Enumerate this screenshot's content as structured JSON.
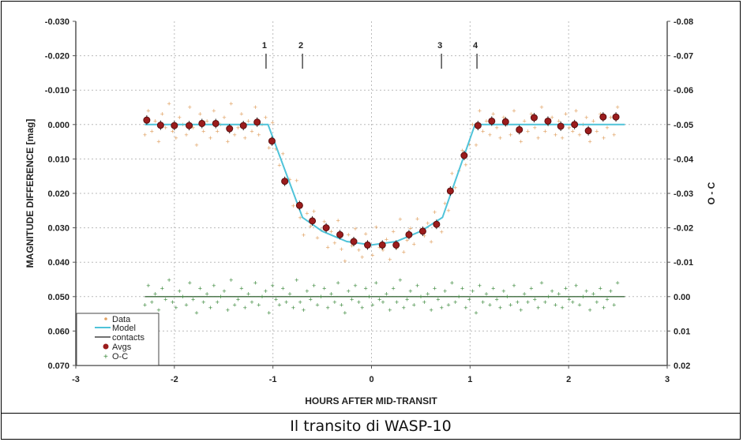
{
  "caption": "Il transito di WASP-10",
  "chart_data": {
    "type": "scatter",
    "xlabel": "HOURS AFTER MID-TRANSIT",
    "ylabel": "MAGNITUDE DIFFERENCE [mag]",
    "y2label": "O - C",
    "xlim": [
      -3,
      3
    ],
    "ylim": [
      -0.03,
      0.07
    ],
    "y2lim": [
      -0.08,
      0.02
    ],
    "y_inverted": true,
    "grid": true,
    "xticks": [
      "-3",
      "-2",
      "-1",
      "0",
      "1",
      "2",
      "3"
    ],
    "yticks": [
      "-0.030",
      "-0.020",
      "-0.010",
      "0.000",
      "0.010",
      "0.020",
      "0.030",
      "0.040",
      "0.050",
      "0.060",
      "0.070"
    ],
    "y2ticks": [
      "-0.08",
      "-0.07",
      "-0.06",
      "-0.05",
      "-0.04",
      "-0.03",
      "-0.02",
      "-0.01",
      "0.00",
      "0.01",
      "0.02"
    ],
    "legend": {
      "placement": "bottom-left",
      "entries": [
        "Data",
        "Model",
        "contacts",
        "Avgs",
        "O-C"
      ]
    },
    "colors": {
      "data": "#e0a060",
      "model": "#4fc3d9",
      "contacts": "#444444",
      "avgs": "#9b1c1c",
      "oc": "#3d8a3d"
    },
    "contacts": [
      {
        "label": "1",
        "x": -1.07
      },
      {
        "label": "2",
        "x": -0.7
      },
      {
        "label": "3",
        "x": 0.71
      },
      {
        "label": "4",
        "x": 1.07
      }
    ],
    "model": [
      [
        -2.3,
        0
      ],
      [
        -1.05,
        0
      ],
      [
        -0.7,
        0.027
      ],
      [
        -0.5,
        0.031
      ],
      [
        -0.25,
        0.034
      ],
      [
        0,
        0.035
      ],
      [
        0.25,
        0.034
      ],
      [
        0.5,
        0.031
      ],
      [
        0.72,
        0.027
      ],
      [
        1.05,
        0
      ],
      [
        2.57,
        0
      ]
    ],
    "avgs": {
      "x": [
        -2.28,
        -2.14,
        -2.0,
        -1.85,
        -1.72,
        -1.58,
        -1.44,
        -1.3,
        -1.16,
        -1.01,
        -0.88,
        -0.73,
        -0.6,
        -0.46,
        -0.32,
        -0.18,
        -0.04,
        0.11,
        0.25,
        0.38,
        0.52,
        0.66,
        0.8,
        0.94,
        1.08,
        1.22,
        1.36,
        1.5,
        1.65,
        1.79,
        1.92,
        2.06,
        2.2,
        2.35,
        2.48
      ],
      "y": [
        -0.0013,
        0.0002,
        0.0003,
        0.0003,
        -0.0003,
        -0.0003,
        0.0012,
        0.0003,
        -0.0007,
        0.0048,
        0.0165,
        0.0235,
        0.028,
        0.03,
        0.032,
        0.034,
        0.035,
        0.035,
        0.035,
        0.032,
        0.031,
        0.029,
        0.0193,
        0.009,
        0.0003,
        -0.001,
        -0.0008,
        0.0015,
        -0.002,
        -0.001,
        0.0005,
        0.0,
        0.0018,
        -0.0022,
        -0.0022
      ]
    },
    "data_x_start": -2.3,
    "data_x_step": 0.035,
    "oc_residuals": [
      0.003,
      -0.004,
      0.002,
      -0.001,
      0.005,
      -0.003,
      0.001,
      -0.006,
      0.002,
      0.004,
      -0.002,
      0.0,
      0.003,
      -0.005,
      0.001,
      0.006,
      -0.003,
      0.002,
      -0.001,
      0.004,
      -0.004,
      0.002,
      0.0,
      -0.002,
      0.005,
      -0.006,
      0.003,
      0.001,
      -0.003,
      0.004,
      -0.001,
      0.002,
      -0.005,
      0.003,
      0.0,
      -0.002,
      0.006,
      -0.004,
      0.001,
      0.003,
      -0.003,
      0.002,
      -0.001,
      0.004,
      -0.006,
      0.002,
      0.005,
      -0.002,
      0.001,
      -0.004,
      0.003,
      0.0,
      -0.003,
      0.004,
      -0.001,
      0.002,
      -0.005,
      0.003,
      0.006,
      -0.002,
      0.001,
      -0.004,
      0.002,
      0.004,
      -0.003,
      0.0,
      0.003,
      -0.005,
      0.001,
      0.002,
      -0.001,
      0.005,
      -0.003,
      0.002,
      -0.006,
      0.004,
      0.001,
      -0.002,
      0.003,
      -0.004,
      0.0,
      0.002,
      -0.001,
      0.005,
      -0.003,
      0.001,
      0.004,
      -0.002,
      0.003,
      -0.005,
      0.002,
      0.0,
      -0.003,
      0.004,
      0.001,
      -0.002,
      0.006,
      -0.004,
      0.002,
      -0.001,
      0.003,
      -0.003,
      0.001,
      0.004,
      -0.002,
      0.0,
      0.003,
      -0.004,
      0.002,
      0.005,
      -0.001,
      0.002,
      -0.003,
      0.001,
      0.004,
      -0.005,
      0.002,
      0.0,
      -0.002,
      0.003,
      -0.001,
      0.004,
      -0.003,
      0.001,
      0.002,
      -0.004,
      0.003,
      0.0,
      -0.002,
      0.005,
      -0.001,
      0.002,
      -0.003,
      0.004,
      0.001,
      -0.002,
      0.003,
      -0.005
    ]
  }
}
